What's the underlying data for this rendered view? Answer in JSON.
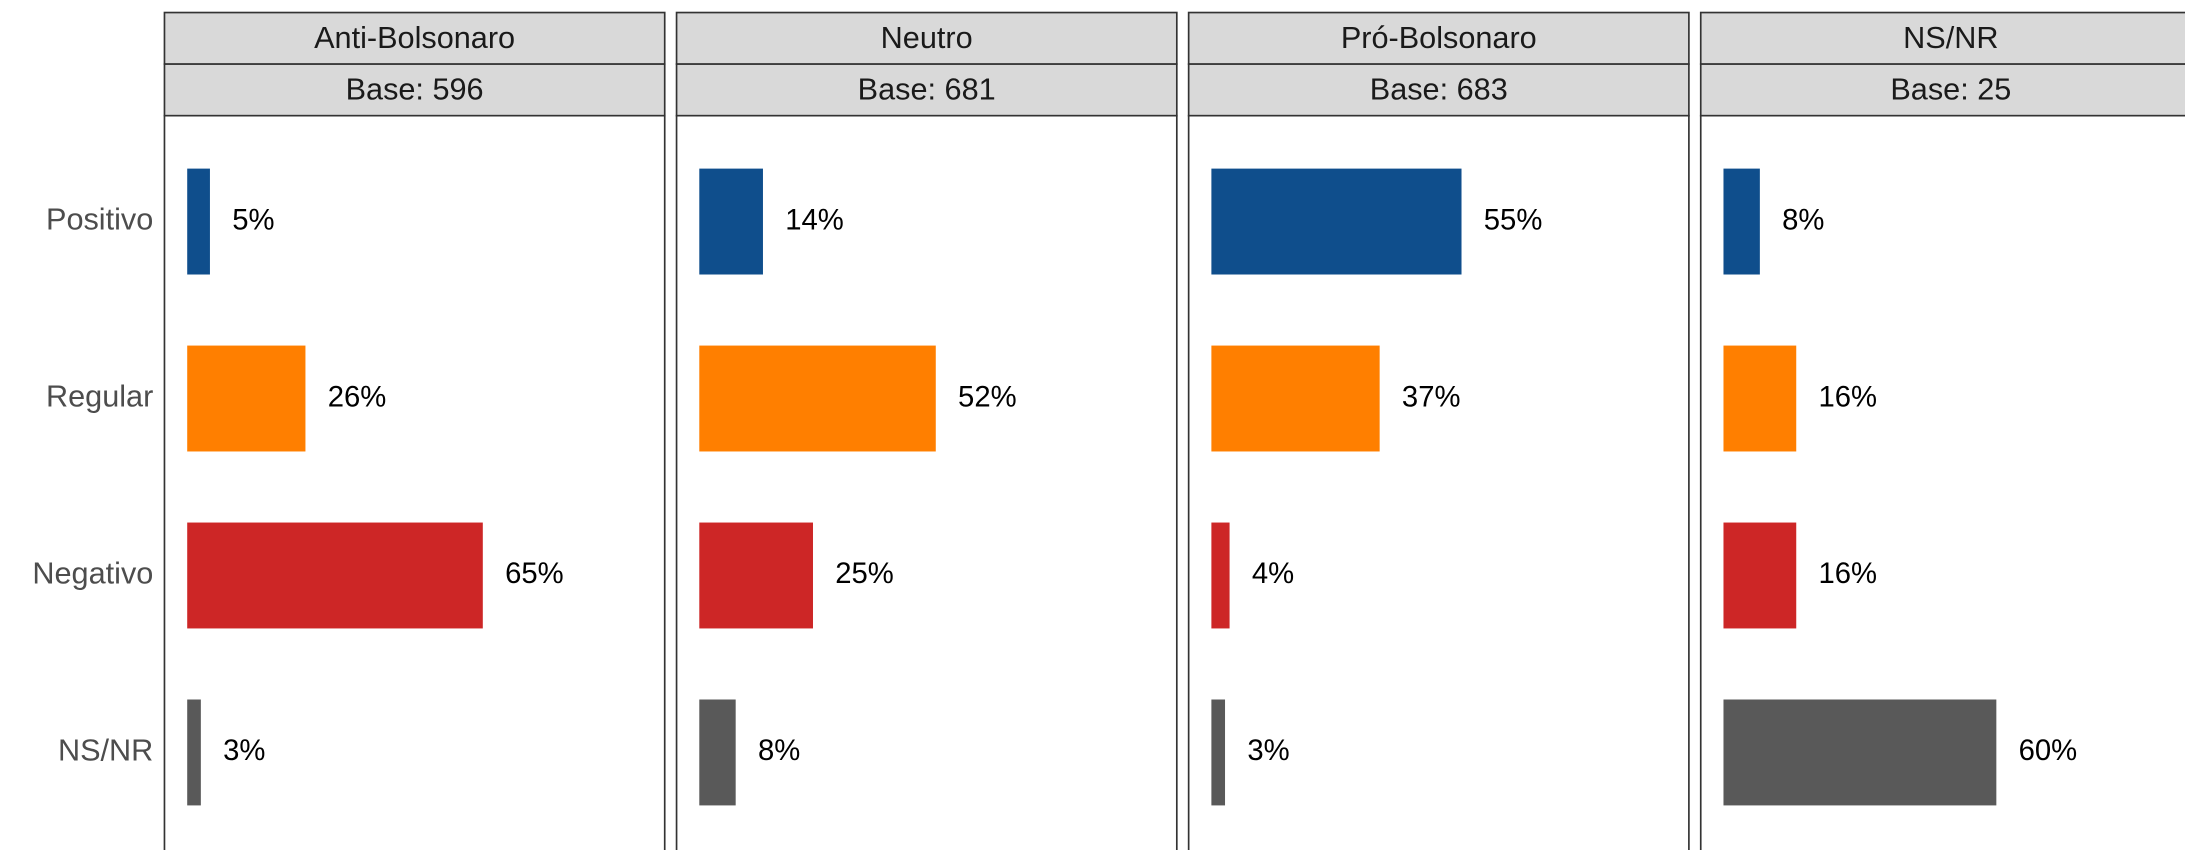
{
  "chart_data": {
    "type": "bar",
    "categories": [
      "Positivo",
      "Regular",
      "Negativo",
      "NS/NR"
    ],
    "colors": [
      "#0f4e8c",
      "#ff7f00",
      "#cd2626",
      "#595959"
    ],
    "xlim": [
      -5,
      105
    ],
    "panels": [
      {
        "title": "Anti-Bolsonaro",
        "subtitle": "Base: 596",
        "values": [
          5,
          26,
          65,
          3
        ],
        "value_labels": [
          "5%",
          "26%",
          "65%",
          "3%"
        ]
      },
      {
        "title": "Neutro",
        "subtitle": "Base: 681",
        "values": [
          14,
          52,
          25,
          8
        ],
        "value_labels": [
          "14%",
          "52%",
          "25%",
          "8%"
        ]
      },
      {
        "title": "Pró-Bolsonaro",
        "subtitle": "Base: 683",
        "values": [
          55,
          37,
          4,
          3
        ],
        "value_labels": [
          "55%",
          "37%",
          "4%",
          "3%"
        ]
      },
      {
        "title": "NS/NR",
        "subtitle": "Base: 25",
        "values": [
          8,
          16,
          16,
          60
        ],
        "value_labels": [
          "8%",
          "16%",
          "16%",
          "60%"
        ]
      }
    ]
  }
}
